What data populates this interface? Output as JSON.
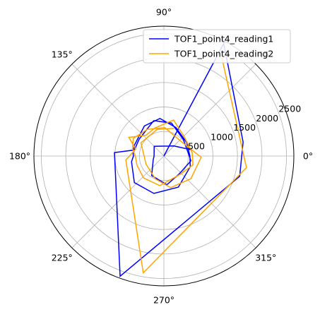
{
  "chart_data": {
    "type": "line",
    "projection": "polar",
    "grid": true,
    "legend_position": "top-right",
    "angle_ticks": [
      "0°",
      "45°",
      "90°",
      "135°",
      "180°",
      "225°",
      "270°",
      "315°"
    ],
    "radial_ticks": [
      "500",
      "1000",
      "1500",
      "2000",
      "2500"
    ],
    "radial_tick_values": [
      500,
      1000,
      1500,
      2000,
      2500
    ],
    "rlim": [
      0,
      2650
    ],
    "series": [
      {
        "name": "TOF1_point4_reading1",
        "color": "#0000ff",
        "points": [
          {
            "theta_deg": 0,
            "r": 0
          },
          {
            "theta_deg": 62,
            "r": 2600
          },
          {
            "theta_deg": 10,
            "r": 1640
          },
          {
            "theta_deg": 345,
            "r": 1600
          },
          {
            "theta_deg": 250,
            "r": 2610
          },
          {
            "theta_deg": 176,
            "r": 1010
          },
          {
            "theta_deg": 169,
            "r": 630
          },
          {
            "theta_deg": 160,
            "r": 640
          },
          {
            "theta_deg": 123,
            "r": 730
          },
          {
            "theta_deg": 96,
            "r": 770
          },
          {
            "theta_deg": 67,
            "r": 630
          },
          {
            "theta_deg": 30,
            "r": 540
          },
          {
            "theta_deg": 0,
            "r": 530
          },
          {
            "theta_deg": 338,
            "r": 580
          },
          {
            "theta_deg": 295,
            "r": 700
          },
          {
            "theta_deg": 255,
            "r": 790
          },
          {
            "theta_deg": 222,
            "r": 810
          },
          {
            "theta_deg": 190,
            "r": 670
          },
          {
            "theta_deg": 180,
            "r": 620
          },
          {
            "theta_deg": 176,
            "r": 630
          },
          {
            "theta_deg": 168,
            "r": 610
          },
          {
            "theta_deg": 158,
            "r": 600
          },
          {
            "theta_deg": 146,
            "r": 610
          },
          {
            "theta_deg": 106,
            "r": 750
          },
          {
            "theta_deg": 77,
            "r": 690
          },
          {
            "theta_deg": 40,
            "r": 520
          },
          {
            "theta_deg": 350,
            "r": 560
          },
          {
            "theta_deg": 312,
            "r": 480
          },
          {
            "theta_deg": 276,
            "r": 590
          },
          {
            "theta_deg": 238,
            "r": 470
          },
          {
            "theta_deg": 199,
            "r": 230
          },
          {
            "theta_deg": 180,
            "r": 200
          },
          {
            "theta_deg": 135,
            "r": 280
          },
          {
            "theta_deg": 45,
            "r": 290
          },
          {
            "theta_deg": 13,
            "r": 570
          }
        ]
      },
      {
        "name": "TOF1_point4_reading2",
        "color": "#ffa500",
        "points": [
          {
            "theta_deg": 60,
            "r": 2350
          },
          {
            "theta_deg": 352,
            "r": 1700
          },
          {
            "theta_deg": 260,
            "r": 2420
          },
          {
            "theta_deg": 186,
            "r": 780
          },
          {
            "theta_deg": 166,
            "r": 590
          },
          {
            "theta_deg": 152,
            "r": 810
          },
          {
            "theta_deg": 131,
            "r": 560
          },
          {
            "theta_deg": 108,
            "r": 600
          },
          {
            "theta_deg": 75,
            "r": 760
          },
          {
            "theta_deg": 43,
            "r": 570
          },
          {
            "theta_deg": 7,
            "r": 580
          },
          {
            "theta_deg": 343,
            "r": 620
          },
          {
            "theta_deg": 311,
            "r": 500
          },
          {
            "theta_deg": 262,
            "r": 610
          },
          {
            "theta_deg": 227,
            "r": 610
          },
          {
            "theta_deg": 199,
            "r": 580
          },
          {
            "theta_deg": 181,
            "r": 580
          },
          {
            "theta_deg": 166,
            "r": 660
          },
          {
            "theta_deg": 150,
            "r": 720
          },
          {
            "theta_deg": 122,
            "r": 640
          },
          {
            "theta_deg": 88,
            "r": 580
          },
          {
            "theta_deg": 40,
            "r": 460
          },
          {
            "theta_deg": 358,
            "r": 760
          },
          {
            "theta_deg": 320,
            "r": 720
          },
          {
            "theta_deg": 282,
            "r": 660
          },
          {
            "theta_deg": 250,
            "r": 500
          },
          {
            "theta_deg": 205,
            "r": 400
          },
          {
            "theta_deg": 150,
            "r": 540
          },
          {
            "theta_deg": 104,
            "r": 560
          },
          {
            "theta_deg": 70,
            "r": 600
          }
        ]
      }
    ]
  }
}
